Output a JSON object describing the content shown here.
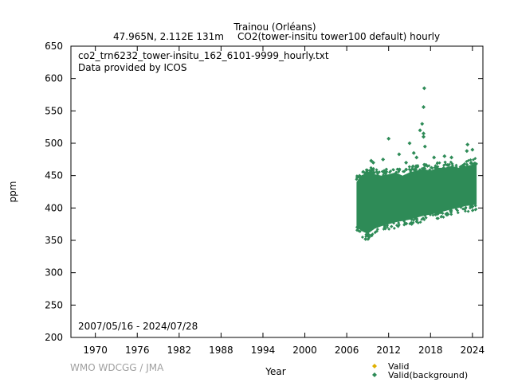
{
  "chart_data": {
    "type": "scatter",
    "title_line1": "Trainou (Orléans)",
    "title_line2_left": "47.965N, 2.112E 131m",
    "title_line2_right": "CO2(tower-insitu tower100 default) hourly",
    "file_label": "co2_trn6232_tower-insitu_162_6101-9999_hourly.txt",
    "provider_label": "Data provided by ICOS",
    "date_range": "2007/05/16 - 2024/07/28",
    "xlabel": "Year",
    "ylabel": "ppm",
    "xlim": [
      1966.5,
      2025.5
    ],
    "ylim": [
      200,
      650
    ],
    "x_ticks": [
      1970,
      1976,
      1982,
      1988,
      1994,
      2000,
      2006,
      2012,
      2018,
      2024
    ],
    "y_ticks": [
      200,
      250,
      300,
      350,
      400,
      450,
      500,
      550,
      600,
      650
    ],
    "grid": false,
    "legend_position": "bottom-right",
    "series": [
      {
        "name": "Valid",
        "color": "#e0b000",
        "points": []
      },
      {
        "name": "Valid(background)",
        "color": "#2e8b57",
        "envelope": [
          {
            "x": 2007.4,
            "low": 372,
            "high": 440
          },
          {
            "x": 2008.0,
            "low": 365,
            "high": 450
          },
          {
            "x": 2009.0,
            "low": 360,
            "high": 455
          },
          {
            "x": 2010.0,
            "low": 368,
            "high": 452
          },
          {
            "x": 2011.0,
            "low": 372,
            "high": 450
          },
          {
            "x": 2012.0,
            "low": 375,
            "high": 452
          },
          {
            "x": 2013.0,
            "low": 378,
            "high": 455
          },
          {
            "x": 2014.0,
            "low": 380,
            "high": 450
          },
          {
            "x": 2015.0,
            "low": 382,
            "high": 455
          },
          {
            "x": 2016.0,
            "low": 385,
            "high": 458
          },
          {
            "x": 2017.0,
            "low": 388,
            "high": 460
          },
          {
            "x": 2018.0,
            "low": 390,
            "high": 458
          },
          {
            "x": 2019.0,
            "low": 392,
            "high": 462
          },
          {
            "x": 2020.0,
            "low": 395,
            "high": 462
          },
          {
            "x": 2021.0,
            "low": 398,
            "high": 465
          },
          {
            "x": 2022.0,
            "low": 400,
            "high": 462
          },
          {
            "x": 2023.0,
            "low": 403,
            "high": 465
          },
          {
            "x": 2024.6,
            "low": 405,
            "high": 468
          }
        ],
        "outliers": [
          {
            "x": 2008.7,
            "y": 352
          },
          {
            "x": 2009.2,
            "y": 355
          },
          {
            "x": 2009.5,
            "y": 473
          },
          {
            "x": 2009.8,
            "y": 470
          },
          {
            "x": 2011.2,
            "y": 475
          },
          {
            "x": 2012.0,
            "y": 507
          },
          {
            "x": 2013.5,
            "y": 483
          },
          {
            "x": 2014.5,
            "y": 470
          },
          {
            "x": 2015.0,
            "y": 500
          },
          {
            "x": 2015.6,
            "y": 485
          },
          {
            "x": 2016.0,
            "y": 478
          },
          {
            "x": 2016.5,
            "y": 520
          },
          {
            "x": 2016.8,
            "y": 530
          },
          {
            "x": 2017.1,
            "y": 585
          },
          {
            "x": 2017.0,
            "y": 556
          },
          {
            "x": 2017.0,
            "y": 515
          },
          {
            "x": 2017.0,
            "y": 510
          },
          {
            "x": 2017.2,
            "y": 495
          },
          {
            "x": 2018.5,
            "y": 478
          },
          {
            "x": 2020.0,
            "y": 480
          },
          {
            "x": 2021.0,
            "y": 478
          },
          {
            "x": 2023.2,
            "y": 488
          },
          {
            "x": 2023.3,
            "y": 498
          },
          {
            "x": 2024.0,
            "y": 490
          }
        ]
      }
    ],
    "credit": "WMO WDCGG / JMA"
  }
}
